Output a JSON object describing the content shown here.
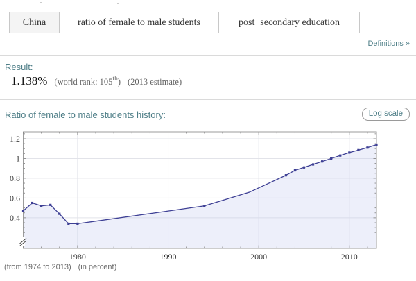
{
  "query_bar": {
    "segments": [
      {
        "label": "China",
        "highlighted": true
      },
      {
        "label": "ratio of female to male students",
        "highlighted": false
      },
      {
        "label": "post−secondary education",
        "highlighted": false
      }
    ]
  },
  "definitions_link": {
    "label": "Definitions »"
  },
  "result": {
    "heading": "Result:",
    "value": "1.138%",
    "world_rank": {
      "pre": "(world rank: 105",
      "sup": "th",
      "post": ")"
    },
    "estimate": "(2013 estimate)"
  },
  "history": {
    "heading": "Ratio of female to male students history:",
    "log_scale_label": "Log scale",
    "caption_range": "(from 1974 to 2013)",
    "caption_unit": "(in percent)"
  },
  "chart_data": {
    "type": "line",
    "title": "Ratio of female to male students history",
    "xlabel": "",
    "ylabel": "",
    "xlim": [
      1974,
      2013
    ],
    "ylim_display": [
      0.09,
      1.27
    ],
    "axis_break": true,
    "grid": true,
    "x_ticks": [
      {
        "v": 1980,
        "label": "1980"
      },
      {
        "v": 1990,
        "label": "1990"
      },
      {
        "v": 2000,
        "label": "2000"
      },
      {
        "v": 2010,
        "label": "2010"
      }
    ],
    "y_ticks": [
      {
        "v": 0.4,
        "label": "0.4"
      },
      {
        "v": 0.6,
        "label": "0.6"
      },
      {
        "v": 0.8,
        "label": "0.8"
      },
      {
        "v": 1.0,
        "label": "1"
      },
      {
        "v": 1.2,
        "label": "1.2"
      }
    ],
    "colors": {
      "line": "#3d3f94",
      "fill": "#c9cff0",
      "grid": "#e2e3e9",
      "frame": "#9b9b9b",
      "tick": "#8a8a8a",
      "label": "#3a3a3a"
    },
    "series": [
      {
        "name": "ratio of female to male students",
        "points": [
          {
            "x": 1974,
            "y": 0.47
          },
          {
            "x": 1975,
            "y": 0.55
          },
          {
            "x": 1976,
            "y": 0.52
          },
          {
            "x": 1977,
            "y": 0.53
          },
          {
            "x": 1978,
            "y": 0.44
          },
          {
            "x": 1979,
            "y": 0.34
          },
          {
            "x": 1980,
            "y": 0.34
          },
          {
            "x": 1994,
            "y": 0.52
          },
          {
            "x": 1999,
            "y": 0.66,
            "m": false
          },
          {
            "x": 2003,
            "y": 0.83
          },
          {
            "x": 2004,
            "y": 0.88
          },
          {
            "x": 2005,
            "y": 0.91
          },
          {
            "x": 2006,
            "y": 0.94
          },
          {
            "x": 2007,
            "y": 0.97
          },
          {
            "x": 2008,
            "y": 1.0
          },
          {
            "x": 2009,
            "y": 1.03
          },
          {
            "x": 2010,
            "y": 1.06
          },
          {
            "x": 2011,
            "y": 1.085
          },
          {
            "x": 2012,
            "y": 1.11
          },
          {
            "x": 2013,
            "y": 1.14
          }
        ]
      }
    ]
  }
}
